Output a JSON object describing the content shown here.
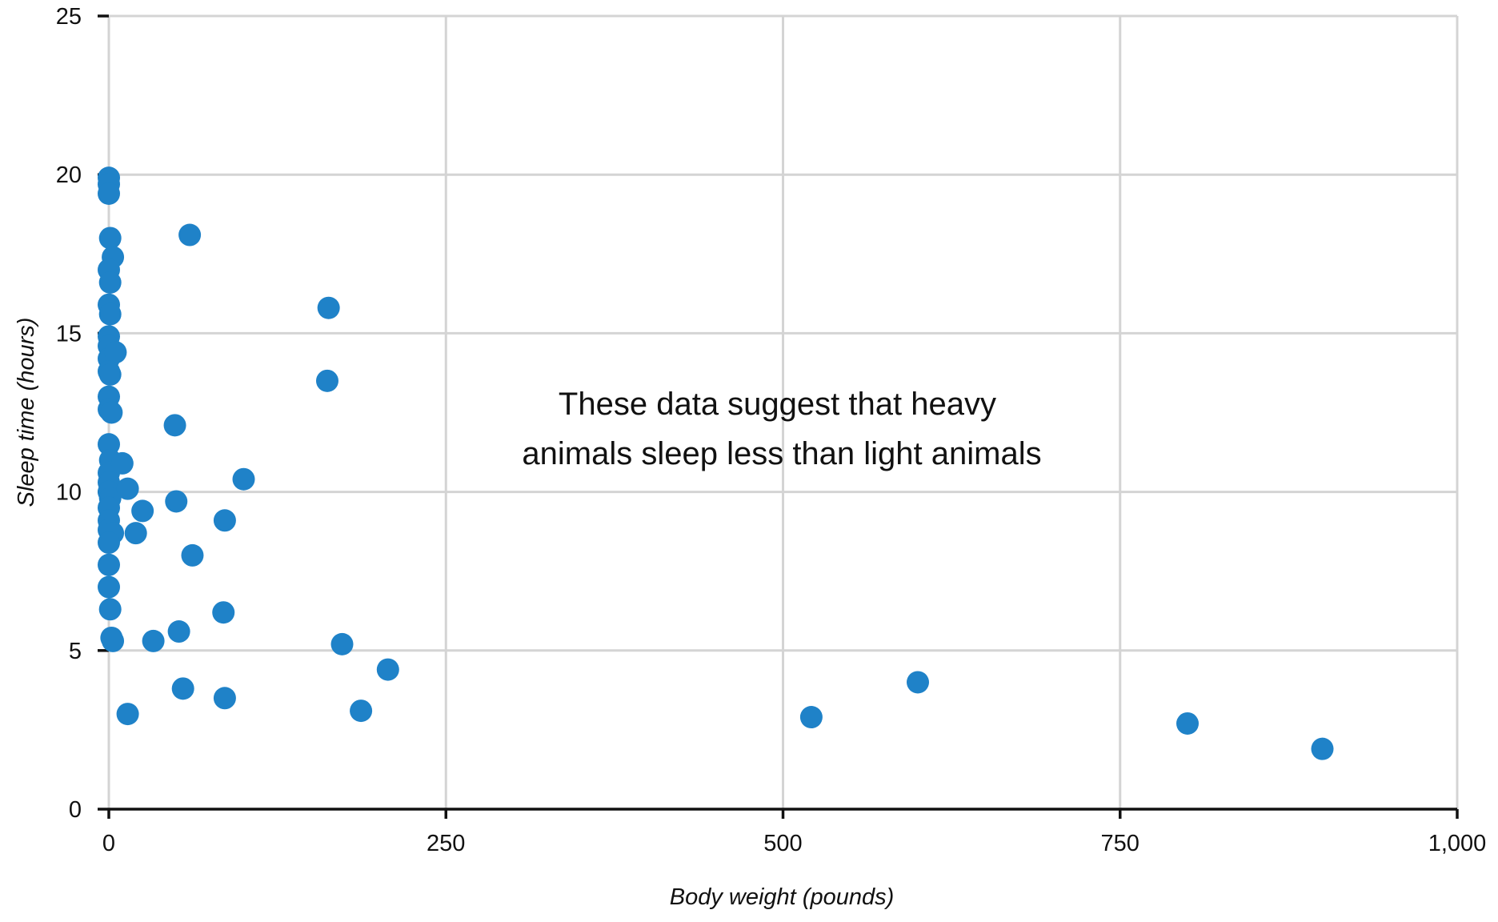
{
  "chart_data": {
    "type": "scatter",
    "xlabel": "Body weight (pounds)",
    "ylabel": "Sleep time (hours)",
    "xlim": [
      0,
      1000
    ],
    "ylim": [
      0,
      25
    ],
    "xticks": [
      0,
      250,
      500,
      750,
      1000
    ],
    "xtick_labels": [
      "0",
      "250",
      "500",
      "750",
      "1,000"
    ],
    "yticks": [
      0,
      5,
      10,
      15,
      20,
      25
    ],
    "ytick_labels": [
      "0",
      "5",
      "10",
      "15",
      "20",
      "25"
    ],
    "grid": true,
    "point_color": "#1f82c8",
    "annotation_lines": [
      "These data suggest that heavy",
      "animals sleep less than light animals"
    ],
    "series": [
      {
        "points": [
          [
            0,
            19.9
          ],
          [
            0,
            19.7
          ],
          [
            0,
            19.4
          ],
          [
            1,
            18.0
          ],
          [
            3,
            17.4
          ],
          [
            0,
            17.0
          ],
          [
            1,
            16.6
          ],
          [
            0,
            15.9
          ],
          [
            1,
            15.6
          ],
          [
            0,
            14.9
          ],
          [
            0,
            14.6
          ],
          [
            0,
            14.2
          ],
          [
            5,
            14.4
          ],
          [
            0,
            13.8
          ],
          [
            1,
            13.7
          ],
          [
            0,
            13.0
          ],
          [
            0,
            12.6
          ],
          [
            2,
            12.5
          ],
          [
            0,
            11.5
          ],
          [
            1,
            11.0
          ],
          [
            0,
            10.6
          ],
          [
            0,
            10.3
          ],
          [
            0,
            10.0
          ],
          [
            1,
            9.8
          ],
          [
            0,
            9.5
          ],
          [
            0,
            9.1
          ],
          [
            0,
            8.8
          ],
          [
            3,
            8.7
          ],
          [
            0,
            8.4
          ],
          [
            0,
            7.7
          ],
          [
            0,
            7.0
          ],
          [
            1,
            6.3
          ],
          [
            2,
            5.4
          ],
          [
            3,
            5.3
          ],
          [
            10,
            10.9
          ],
          [
            14,
            10.1
          ],
          [
            20,
            8.7
          ],
          [
            25,
            9.4
          ],
          [
            14,
            3.0
          ],
          [
            33,
            5.3
          ],
          [
            52,
            5.6
          ],
          [
            55,
            3.8
          ],
          [
            50,
            9.7
          ],
          [
            49,
            12.1
          ],
          [
            60,
            18.1
          ],
          [
            62,
            8.0
          ],
          [
            85,
            6.2
          ],
          [
            86,
            3.5
          ],
          [
            86,
            9.1
          ],
          [
            100,
            10.4
          ],
          [
            162,
            13.5
          ],
          [
            163,
            15.8
          ],
          [
            173,
            5.2
          ],
          [
            187,
            3.1
          ],
          [
            207,
            4.4
          ],
          [
            521,
            2.9
          ],
          [
            600,
            4.0
          ],
          [
            800,
            2.7
          ],
          [
            900,
            1.9
          ]
        ]
      }
    ]
  }
}
